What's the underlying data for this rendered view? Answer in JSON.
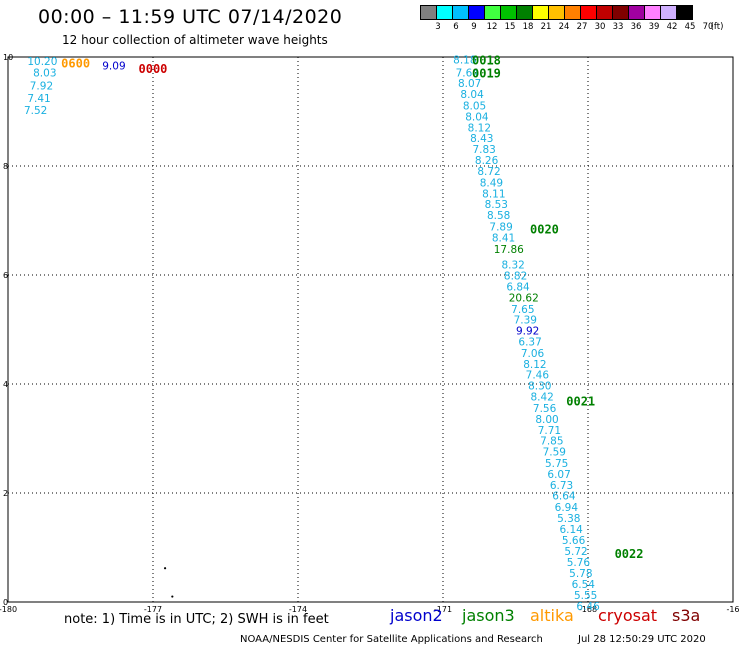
{
  "title": "00:00 – 11:59 UTC 07/14/2020",
  "subtitle": "12 hour collection of altimeter wave heights",
  "legend": {
    "colors": [
      "#808080",
      "#00ffff",
      "#00c0ff",
      "#0000ff",
      "#40ff40",
      "#00c000",
      "#008000",
      "#ffff00",
      "#ffc000",
      "#ff8000",
      "#ff0000",
      "#c00000",
      "#800000",
      "#a000a0",
      "#ff80ff",
      "#d0b0ff",
      "#000000"
    ],
    "labels": [
      "3",
      "6",
      "9",
      "12",
      "15",
      "18",
      "21",
      "24",
      "27",
      "30",
      "33",
      "36",
      "39",
      "42",
      "45",
      "70",
      "(ft)"
    ]
  },
  "chart_data": {
    "type": "scatter",
    "title": "00:00 – 11:59 UTC 07/14/2020",
    "subtitle": "12 hour collection of altimeter wave heights",
    "xlim": [
      -180,
      -165
    ],
    "ylim": [
      0,
      10
    ],
    "x_ticks": [
      "-180",
      "-177",
      "-174",
      "-171",
      "-168",
      "-16"
    ],
    "y_ticks": [
      "0",
      "2",
      "4",
      "6",
      "8",
      "10"
    ],
    "grid": true,
    "colors": {
      "jason2": "#0000cc",
      "jason3": "#008000",
      "altika": "#ff9900",
      "cryosat": "#cc0000",
      "s3a": "#800000",
      "default": "#1ab0e0"
    },
    "time_labels": [
      {
        "text": "0600",
        "lon": -178.9,
        "lat": 9.9,
        "sat": "altika"
      },
      {
        "text": "0000",
        "lon": -177.3,
        "lat": 9.8,
        "sat": "cryosat"
      },
      {
        "text": "0018",
        "lon": -170.4,
        "lat": 9.95,
        "sat": "jason3"
      },
      {
        "text": "0019",
        "lon": -170.4,
        "lat": 9.72,
        "sat": "jason3"
      },
      {
        "text": "0020",
        "lon": -169.2,
        "lat": 6.85,
        "sat": "jason3"
      },
      {
        "text": "0021",
        "lon": -168.45,
        "lat": 3.7,
        "sat": "jason3"
      },
      {
        "text": "0022",
        "lon": -167.45,
        "lat": 0.9,
        "sat": "jason3"
      }
    ],
    "points": [
      {
        "v": "10.20",
        "lon": -179.6,
        "lat": 9.93
      },
      {
        "v": "8.03",
        "lon": -179.48,
        "lat": 9.72
      },
      {
        "v": "9.09",
        "lon": -178.05,
        "lat": 9.84,
        "sat": "jason2"
      },
      {
        "v": "7.92",
        "lon": -179.55,
        "lat": 9.48
      },
      {
        "v": "7.41",
        "lon": -179.6,
        "lat": 9.25
      },
      {
        "v": "7.52",
        "lon": -179.67,
        "lat": 9.03
      },
      {
        "v": "8.18",
        "lon": -170.79,
        "lat": 9.95
      },
      {
        "v": "7.64",
        "lon": -170.74,
        "lat": 9.72
      },
      {
        "v": "8.07",
        "lon": -170.69,
        "lat": 9.52
      },
      {
        "v": "8.04",
        "lon": -170.64,
        "lat": 9.32
      },
      {
        "v": "8.05",
        "lon": -170.59,
        "lat": 9.11
      },
      {
        "v": "8.04",
        "lon": -170.54,
        "lat": 8.91
      },
      {
        "v": "8.12",
        "lon": -170.49,
        "lat": 8.71
      },
      {
        "v": "8.43",
        "lon": -170.44,
        "lat": 8.51
      },
      {
        "v": "7.83",
        "lon": -170.39,
        "lat": 8.31
      },
      {
        "v": "8.26",
        "lon": -170.34,
        "lat": 8.11
      },
      {
        "v": "8.72",
        "lon": -170.29,
        "lat": 7.91
      },
      {
        "v": "8.49",
        "lon": -170.24,
        "lat": 7.7
      },
      {
        "v": "8.11",
        "lon": -170.19,
        "lat": 7.5
      },
      {
        "v": "8.53",
        "lon": -170.14,
        "lat": 7.3
      },
      {
        "v": "8.58",
        "lon": -170.09,
        "lat": 7.1
      },
      {
        "v": "7.89",
        "lon": -170.04,
        "lat": 6.89
      },
      {
        "v": "8.41",
        "lon": -169.99,
        "lat": 6.69
      },
      {
        "v": "17.86",
        "lon": -169.95,
        "lat": 6.48,
        "sat": "jason3"
      },
      {
        "v": "8.32",
        "lon": -169.79,
        "lat": 6.19
      },
      {
        "v": "8.82",
        "lon": -169.74,
        "lat": 5.99
      },
      {
        "v": "6.84",
        "lon": -169.69,
        "lat": 5.79
      },
      {
        "v": "20.62",
        "lon": -169.64,
        "lat": 5.59,
        "sat": "jason3"
      },
      {
        "v": "7.65",
        "lon": -169.59,
        "lat": 5.38
      },
      {
        "v": "7.39",
        "lon": -169.54,
        "lat": 5.18
      },
      {
        "v": "9.92",
        "lon": -169.49,
        "lat": 4.98,
        "sat": "jason2"
      },
      {
        "v": "6.37",
        "lon": -169.44,
        "lat": 4.78
      },
      {
        "v": "7.06",
        "lon": -169.39,
        "lat": 4.57
      },
      {
        "v": "8.12",
        "lon": -169.34,
        "lat": 4.37
      },
      {
        "v": "7.46",
        "lon": -169.29,
        "lat": 4.17
      },
      {
        "v": "8.30",
        "lon": -169.24,
        "lat": 3.97
      },
      {
        "v": "8.42",
        "lon": -169.19,
        "lat": 3.77
      },
      {
        "v": "7.56",
        "lon": -169.14,
        "lat": 3.56
      },
      {
        "v": "8.00",
        "lon": -169.09,
        "lat": 3.36
      },
      {
        "v": "7.71",
        "lon": -169.04,
        "lat": 3.16
      },
      {
        "v": "7.85",
        "lon": -168.99,
        "lat": 2.96
      },
      {
        "v": "7.59",
        "lon": -168.94,
        "lat": 2.76
      },
      {
        "v": "5.75",
        "lon": -168.89,
        "lat": 2.55
      },
      {
        "v": "6.07",
        "lon": -168.84,
        "lat": 2.35
      },
      {
        "v": "6.73",
        "lon": -168.79,
        "lat": 2.15
      },
      {
        "v": "6.64",
        "lon": -168.74,
        "lat": 1.95
      },
      {
        "v": "6.94",
        "lon": -168.69,
        "lat": 1.74
      },
      {
        "v": "5.38",
        "lon": -168.64,
        "lat": 1.54
      },
      {
        "v": "6.14",
        "lon": -168.59,
        "lat": 1.34
      },
      {
        "v": "5.66",
        "lon": -168.54,
        "lat": 1.14
      },
      {
        "v": "5.72",
        "lon": -168.49,
        "lat": 0.94
      },
      {
        "v": "5.76",
        "lon": -168.44,
        "lat": 0.73
      },
      {
        "v": "5.78",
        "lon": -168.39,
        "lat": 0.53
      },
      {
        "v": "6.54",
        "lon": -168.34,
        "lat": 0.33
      },
      {
        "v": "5.55",
        "lon": -168.29,
        "lat": 0.13
      },
      {
        "v": "6.46",
        "lon": -168.24,
        "lat": -0.07
      }
    ],
    "dots": [
      {
        "lon": -176.75,
        "lat": 0.62
      },
      {
        "lon": -176.6,
        "lat": 0.1
      }
    ]
  },
  "note": "note:  1) Time is in UTC;  2) SWH is in feet",
  "satellites": [
    {
      "name": "jason2",
      "color": "#0000cc"
    },
    {
      "name": "jason3",
      "color": "#008000"
    },
    {
      "name": "altika",
      "color": "#ff9900"
    },
    {
      "name": "cryosat",
      "color": "#cc0000"
    },
    {
      "name": "s3a",
      "color": "#800000"
    }
  ],
  "footer": "NOAA/NESDIS Center for Satellite Applications and Research",
  "footer_date": "Jul 28 12:50:29 UTC 2020"
}
